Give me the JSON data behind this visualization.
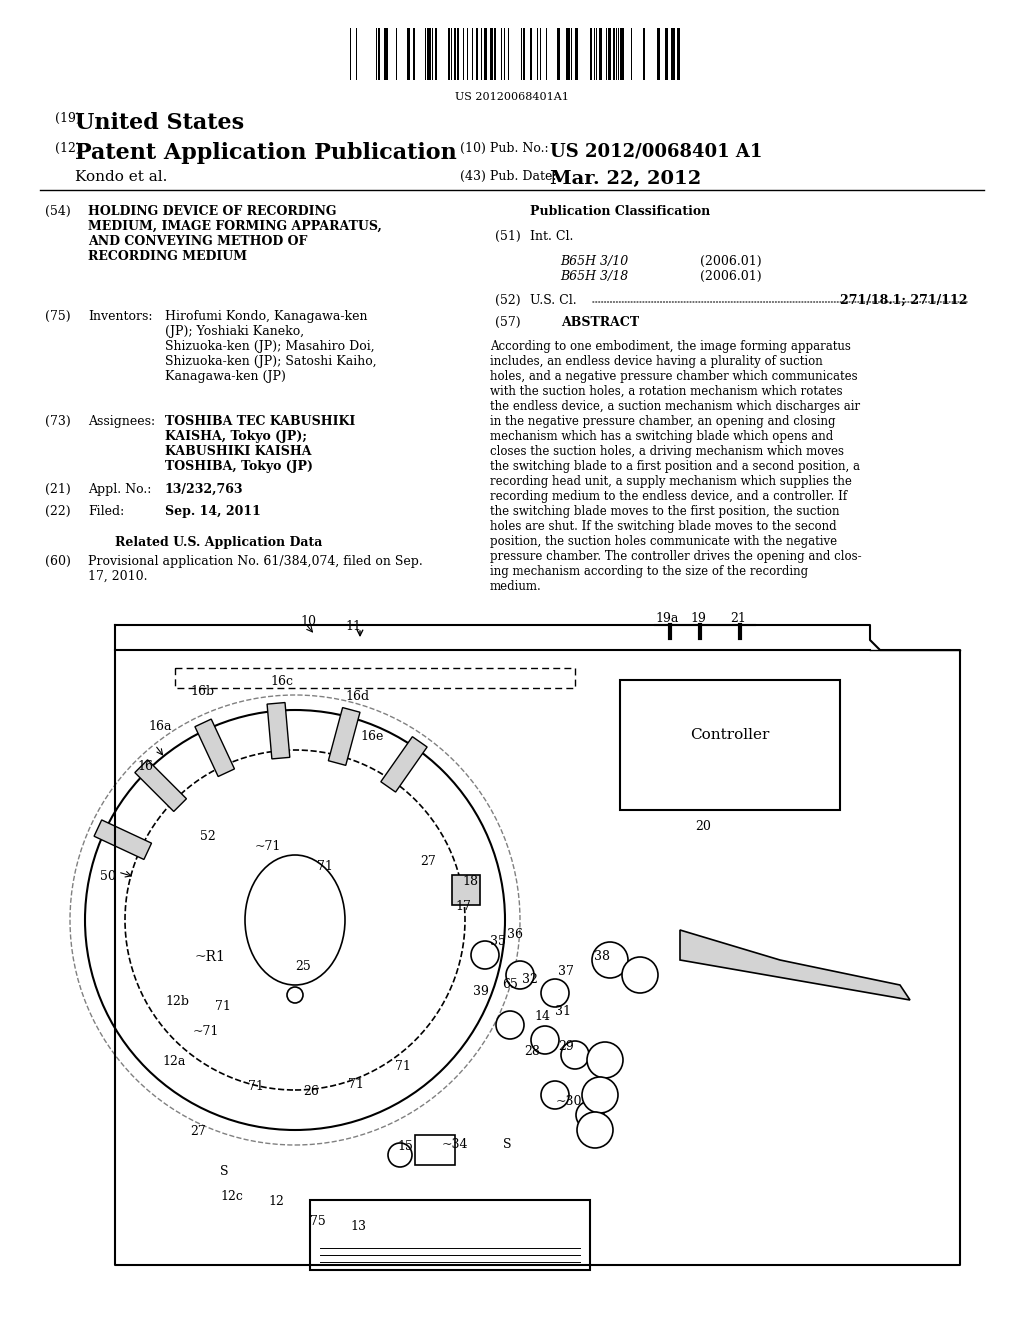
{
  "bg_color": "#ffffff",
  "barcode_text": "US 20120068401A1",
  "patent_number": "US 2012/0068401 A1",
  "pub_date": "Mar. 22, 2012",
  "country": "United States",
  "kind": "Patent Application Publication",
  "inventors_label": "Kondo et al.",
  "pub_no_label": "(10) Pub. No.:",
  "pub_date_label": "(43) Pub. Date:",
  "num19": "(19)",
  "num12": "(12)",
  "title54": "(54)",
  "title_text": "HOLDING DEVICE OF RECORDING\nMEDIUM, IMAGE FORMING APPARATUS,\nAND CONVEYING METHOD OF\nRECORDING MEDIUM",
  "inventors75": "(75)",
  "inventors_word": "Inventors:",
  "inventors_detail": "Hirofumi Kondo, Kanagawa-ken\n(JP); Yoshiaki Kaneko,\nShizuoka-ken (JP); Masahiro Doi,\nShizuoka-ken (JP); Satoshi Kaiho,\nKanagawa-ken (JP)",
  "assignees73": "(73)",
  "assignees_word": "Assignees:",
  "assignees_detail": "TOSHIBA TEC KABUSHIKI\nKAISHA, Tokyo (JP);\nKABUSHIKI KAISHA\nTOSHIBA, Tokyo (JP)",
  "appl21": "(21)",
  "appl_word": "Appl. No.:",
  "appl_no": "13/232,763",
  "filed22": "(22)",
  "filed_word": "Filed:",
  "filed_date": "Sep. 14, 2011",
  "related_title": "Related U.S. Application Data",
  "related60": "(60)",
  "related_text": "Provisional application No. 61/384,074, filed on Sep.\n17, 2010.",
  "pub_class_title": "Publication Classification",
  "intcl51": "(51)",
  "intcl_word": "Int. Cl.",
  "intcl_b65h310": "B65H 3/10",
  "intcl_b65h318": "B65H 3/18",
  "intcl_2006": "(2006.01)",
  "uscl52": "(52)",
  "uscl_word": "U.S. Cl.",
  "uscl_val": "271/18.1; 271/112",
  "abstract57": "(57)",
  "abstract_word": "ABSTRACT",
  "abstract_text": "According to one embodiment, the image forming apparatus\nincludes, an endless device having a plurality of suction\nholes, and a negative pressure chamber which communicates\nwith the suction holes, a rotation mechanism which rotates\nthe endless device, a suction mechanism which discharges air\nin the negative pressure chamber, an opening and closing\nmechanism which has a switching blade which opens and\ncloses the suction holes, a driving mechanism which moves\nthe switching blade to a first position and a second position, a\nrecording head unit, a supply mechanism which supplies the\nrecording medium to the endless device, and a controller. If\nthe switching blade moves to the first position, the suction\nholes are shut. If the switching blade moves to the second\nposition, the suction holes communicate with the negative\npressure chamber. The controller drives the opening and clos-\ning mechanism according to the size of the recording\nmedium."
}
